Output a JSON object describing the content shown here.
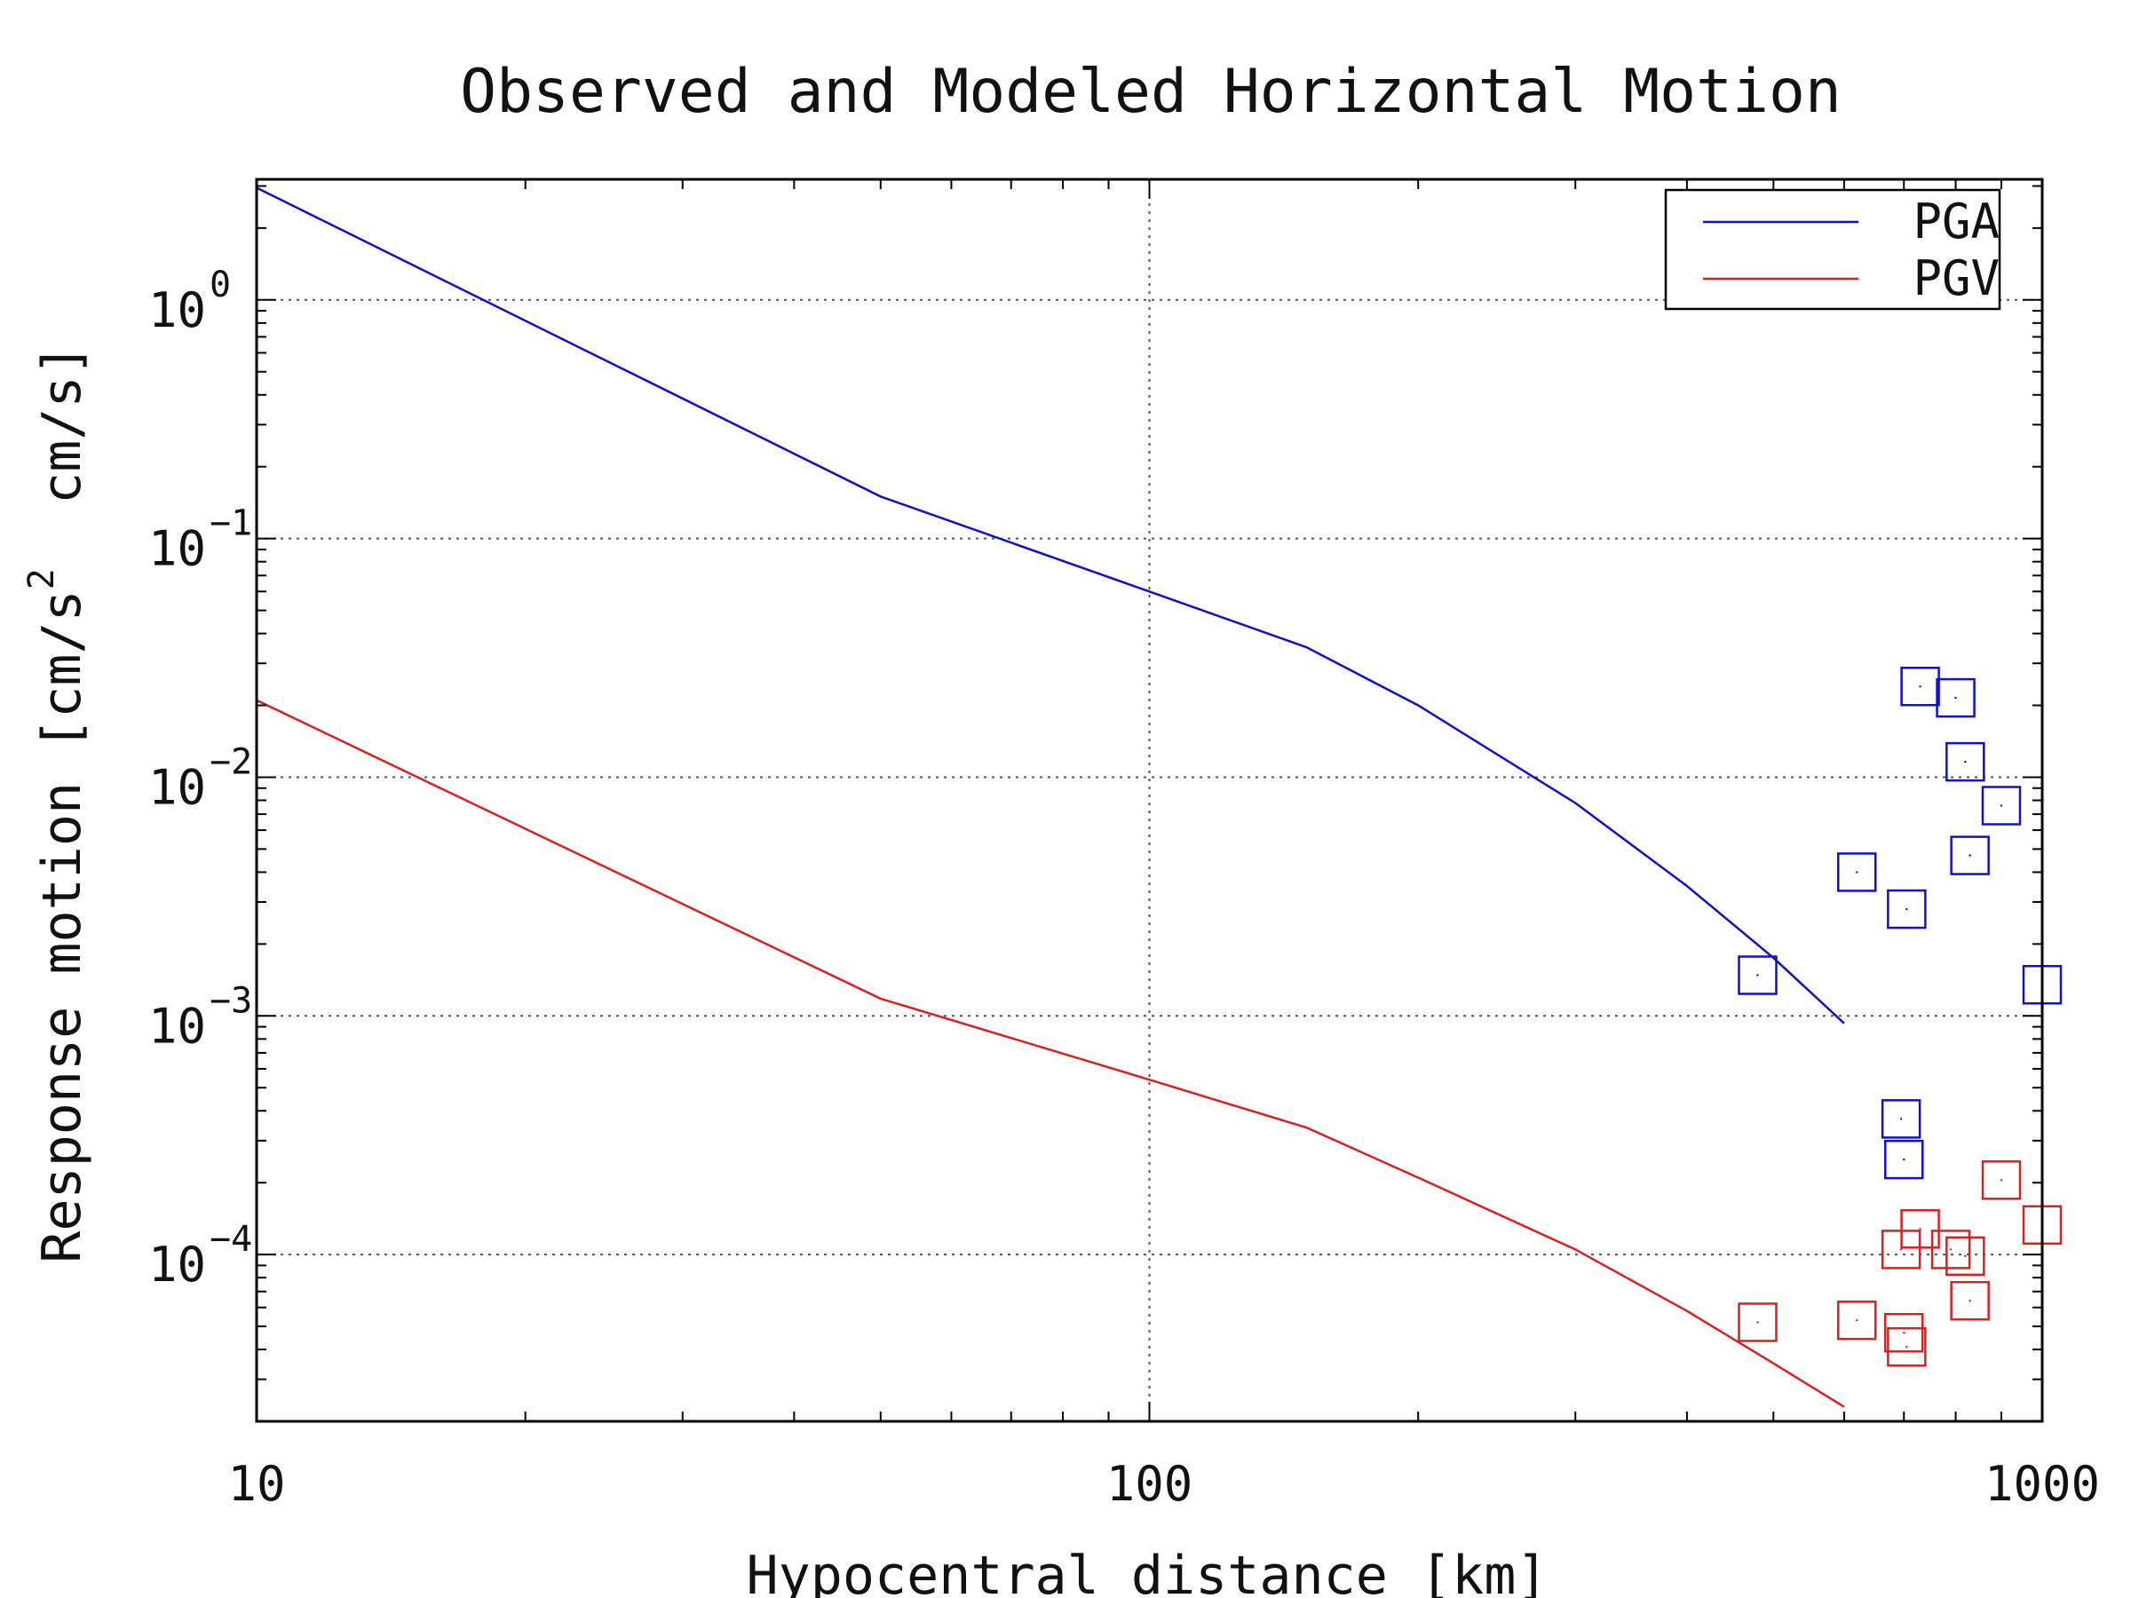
{
  "chart_data": {
    "type": "scatter",
    "title": "Observed and Modeled Horizontal Motion",
    "xlabel": "Hypocentral distance [km]",
    "ylabel_parts": {
      "prefix": "Response motion [cm/s",
      "sup": "2",
      "suffix": "  cm/s]"
    },
    "x_scale": "log",
    "y_scale": "log",
    "xlim": [
      10,
      1000
    ],
    "ylim": [
      2e-05,
      3.2
    ],
    "grid": true,
    "legend_position": "top-right",
    "x_ticks": [
      {
        "value": 10,
        "label": "10"
      },
      {
        "value": 100,
        "label": "100"
      },
      {
        "value": 1000,
        "label": "1000"
      }
    ],
    "y_ticks": [
      {
        "value": 1,
        "base": "10",
        "exp": "0"
      },
      {
        "value": 0.1,
        "base": "10",
        "exp": "−1"
      },
      {
        "value": 0.01,
        "base": "10",
        "exp": "−2"
      },
      {
        "value": 0.001,
        "base": "10",
        "exp": "−3"
      },
      {
        "value": 0.0001,
        "base": "10",
        "exp": "−4"
      }
    ],
    "series": [
      {
        "name": "PGA",
        "color": "#1010c8",
        "kind": "line",
        "points": [
          [
            10,
            2.95
          ],
          [
            50,
            0.15
          ],
          [
            100,
            0.06
          ],
          [
            150,
            0.035
          ],
          [
            200,
            0.02
          ],
          [
            300,
            0.0078
          ],
          [
            400,
            0.0035
          ],
          [
            500,
            0.00175
          ],
          [
            600,
            0.00093
          ]
        ]
      },
      {
        "name": "PGV",
        "color": "#d82020",
        "kind": "line",
        "points": [
          [
            10,
            0.021
          ],
          [
            50,
            0.00118
          ],
          [
            100,
            0.00054
          ],
          [
            150,
            0.00034
          ],
          [
            200,
            0.00021
          ],
          [
            300,
            0.000105
          ],
          [
            400,
            5.8e-05
          ],
          [
            500,
            3.5e-05
          ],
          [
            600,
            2.3e-05
          ]
        ]
      }
    ],
    "observed": [
      {
        "name": "PGA",
        "color": "#1010c8",
        "points": [
          [
            480,
            0.00148
          ],
          [
            620,
            0.004
          ],
          [
            695,
            0.00037
          ],
          [
            700,
            0.00025
          ],
          [
            705,
            0.0028
          ],
          [
            730,
            0.024
          ],
          [
            800,
            0.0215
          ],
          [
            820,
            0.0116
          ],
          [
            830,
            0.0047
          ],
          [
            900,
            0.0076
          ],
          [
            1000,
            0.00135
          ]
        ]
      },
      {
        "name": "PGV",
        "color": "#d82020",
        "points": [
          [
            480,
            5.2e-05
          ],
          [
            620,
            5.3e-05
          ],
          [
            695,
            0.000105
          ],
          [
            700,
            4.7e-05
          ],
          [
            705,
            4.1e-05
          ],
          [
            730,
            0.000128
          ],
          [
            790,
            0.000105
          ],
          [
            820,
            9.85e-05
          ],
          [
            830,
            6.4e-05
          ],
          [
            900,
            0.000205
          ],
          [
            1000,
            0.000133
          ]
        ]
      }
    ]
  }
}
